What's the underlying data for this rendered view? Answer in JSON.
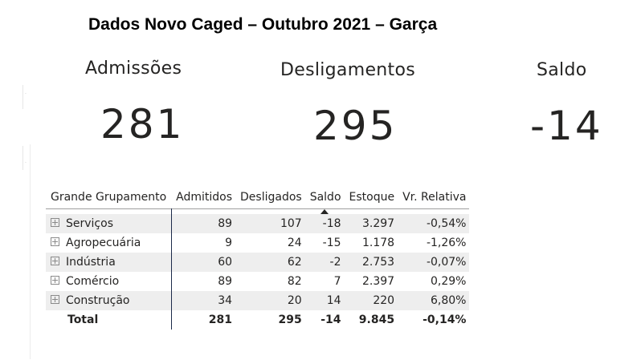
{
  "page": {
    "title": "Dados Novo Caged – Outubro 2021 – Garça"
  },
  "kpis": {
    "admissoes": {
      "label": "Admissões",
      "value": "281"
    },
    "desligamentos": {
      "label": "Desligamentos",
      "value": "295"
    },
    "saldo": {
      "label": "Saldo",
      "value": "-14"
    }
  },
  "table": {
    "headers": [
      "Grande Grupamento",
      "Admitidos",
      "Desligados",
      "Saldo",
      "Estoque",
      "Vr. Relativa"
    ],
    "sorted_column": "Saldo",
    "rows": [
      [
        "Serviços",
        "89",
        "107",
        "-18",
        "3.297",
        "-0,54%"
      ],
      [
        "Agropecuária",
        "9",
        "24",
        "-15",
        "1.178",
        "-1,26%"
      ],
      [
        "Indústria",
        "60",
        "62",
        "-2",
        "2.753",
        "-0,07%"
      ],
      [
        "Comércio",
        "89",
        "82",
        "7",
        "2.397",
        "0,29%"
      ],
      [
        "Construção",
        "34",
        "20",
        "14",
        "220",
        "6,80%"
      ]
    ],
    "total": [
      "Total",
      "281",
      "295",
      "-14",
      "9.845",
      "-0,14%"
    ]
  },
  "icons": {
    "expand": "plus-square-icon",
    "sort": "sort-ascending-icon"
  }
}
